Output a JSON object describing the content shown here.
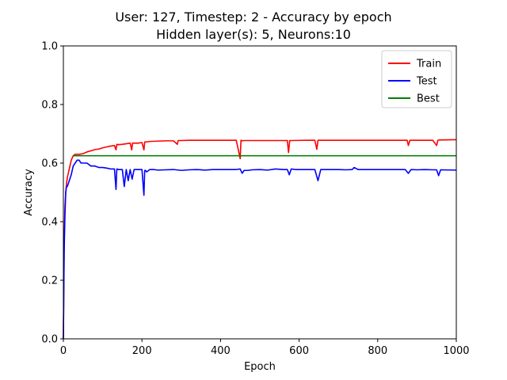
{
  "chart_data": {
    "type": "line",
    "title_line1": "User: 127, Timestep: 2 - Accuracy by epoch",
    "title_line2": "Hidden layer(s): 5, Neurons:10",
    "xlabel": "Epoch",
    "ylabel": "Accuracy",
    "xlim": [
      0,
      1000
    ],
    "ylim": [
      0,
      1.0
    ],
    "xticks": [
      0,
      200,
      400,
      600,
      800,
      1000
    ],
    "xtick_labels": [
      "0",
      "200",
      "400",
      "600",
      "800",
      "1000"
    ],
    "yticks": [
      0,
      0.2,
      0.4,
      0.6,
      0.8,
      1.0
    ],
    "ytick_labels": [
      "0.0",
      "0.2",
      "0.4",
      "0.6",
      "0.8",
      "1.0"
    ],
    "grid": false,
    "legend_position": "top-right",
    "series": [
      {
        "name": "Train",
        "color": "#ff0000",
        "x": [
          0,
          2,
          4,
          6,
          8,
          10,
          15,
          20,
          25,
          30,
          40,
          50,
          60,
          70,
          80,
          90,
          100,
          110,
          120,
          130,
          134,
          136,
          140,
          150,
          160,
          170,
          174,
          176,
          180,
          190,
          200,
          205,
          207,
          210,
          220,
          240,
          260,
          280,
          290,
          292,
          300,
          320,
          350,
          400,
          440,
          450,
          452,
          455,
          460,
          500,
          550,
          570,
          573,
          576,
          580,
          620,
          640,
          645,
          648,
          700,
          750,
          800,
          850,
          875,
          878,
          882,
          900,
          940,
          950,
          953,
          957,
          1000
        ],
        "y": [
          0.0,
          0.33,
          0.45,
          0.5,
          0.53,
          0.55,
          0.58,
          0.61,
          0.625,
          0.63,
          0.63,
          0.632,
          0.638,
          0.642,
          0.646,
          0.648,
          0.652,
          0.655,
          0.658,
          0.66,
          0.645,
          0.664,
          0.663,
          0.664,
          0.666,
          0.668,
          0.645,
          0.668,
          0.668,
          0.668,
          0.67,
          0.645,
          0.672,
          0.672,
          0.674,
          0.675,
          0.676,
          0.676,
          0.664,
          0.677,
          0.677,
          0.678,
          0.678,
          0.678,
          0.678,
          0.615,
          0.678,
          0.676,
          0.677,
          0.677,
          0.677,
          0.677,
          0.636,
          0.677,
          0.677,
          0.678,
          0.678,
          0.647,
          0.678,
          0.678,
          0.678,
          0.678,
          0.678,
          0.678,
          0.66,
          0.678,
          0.678,
          0.678,
          0.66,
          0.678,
          0.679,
          0.68
        ]
      },
      {
        "name": "Test",
        "color": "#0000ff",
        "x": [
          0,
          2,
          4,
          6,
          8,
          10,
          15,
          20,
          25,
          30,
          35,
          40,
          45,
          50,
          60,
          70,
          80,
          90,
          100,
          110,
          120,
          130,
          134,
          136,
          140,
          150,
          155,
          160,
          165,
          170,
          175,
          180,
          190,
          200,
          205,
          207,
          209,
          212,
          220,
          230,
          240,
          260,
          280,
          300,
          320,
          340,
          360,
          380,
          400,
          420,
          440,
          450,
          455,
          460,
          470,
          480,
          500,
          520,
          540,
          560,
          570,
          575,
          580,
          590,
          600,
          620,
          640,
          648,
          655,
          660,
          700,
          720,
          735,
          740,
          750,
          800,
          850,
          870,
          878,
          885,
          900,
          920,
          940,
          950,
          955,
          960,
          1000
        ],
        "y": [
          0.0,
          0.3,
          0.42,
          0.5,
          0.52,
          0.52,
          0.54,
          0.56,
          0.59,
          0.6,
          0.61,
          0.61,
          0.6,
          0.6,
          0.6,
          0.59,
          0.59,
          0.585,
          0.585,
          0.583,
          0.58,
          0.58,
          0.51,
          0.58,
          0.578,
          0.578,
          0.52,
          0.578,
          0.54,
          0.578,
          0.545,
          0.578,
          0.578,
          0.578,
          0.49,
          0.575,
          0.575,
          0.57,
          0.578,
          0.578,
          0.576,
          0.577,
          0.578,
          0.575,
          0.577,
          0.578,
          0.576,
          0.578,
          0.578,
          0.578,
          0.578,
          0.58,
          0.565,
          0.575,
          0.575,
          0.577,
          0.578,
          0.576,
          0.58,
          0.578,
          0.578,
          0.56,
          0.58,
          0.578,
          0.578,
          0.578,
          0.578,
          0.54,
          0.578,
          0.578,
          0.578,
          0.577,
          0.578,
          0.585,
          0.578,
          0.578,
          0.578,
          0.578,
          0.565,
          0.578,
          0.577,
          0.578,
          0.577,
          0.577,
          0.557,
          0.577,
          0.576
        ]
      },
      {
        "name": "Best",
        "color": "#008000",
        "x": [
          25,
          1000
        ],
        "y": [
          0.625,
          0.625
        ]
      }
    ]
  }
}
